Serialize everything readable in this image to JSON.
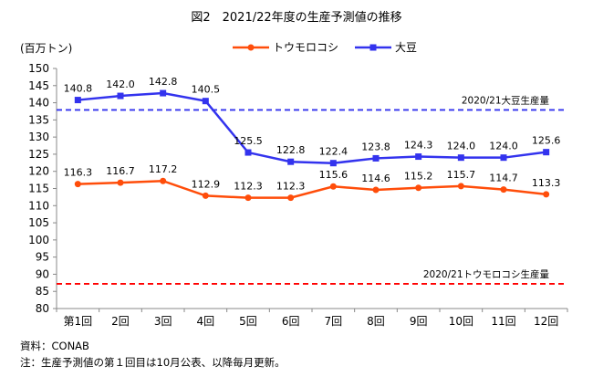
{
  "chart_data": {
    "type": "line",
    "title": "図2　2021/22年度の生産予測値の推移",
    "ylabel": "(百万トン)",
    "xlabel": "",
    "categories": [
      "第1回",
      "2回",
      "3回",
      "4回",
      "5回",
      "6回",
      "7回",
      "8回",
      "9回",
      "10回",
      "11回",
      "12回"
    ],
    "ylim": [
      80,
      150
    ],
    "ytick_step": 5,
    "grid": false,
    "legend_position": "top-center",
    "series": [
      {
        "name": "トウモロコシ",
        "color": "#ff4d0a",
        "values": [
          116.3,
          116.7,
          117.2,
          112.9,
          112.3,
          112.3,
          115.6,
          114.6,
          115.2,
          115.7,
          114.7,
          113.3
        ],
        "labels": [
          "116.3",
          "116.7",
          "117.2",
          "112.9",
          "112.3",
          "112.3",
          "115.6",
          "114.6",
          "115.2",
          "115.7",
          "114.7",
          "113.3"
        ]
      },
      {
        "name": "大豆",
        "color": "#3333ee",
        "values": [
          140.8,
          142.0,
          142.8,
          140.5,
          125.5,
          122.8,
          122.4,
          123.8,
          124.3,
          124.0,
          124.0,
          125.6
        ],
        "labels": [
          "140.8",
          "142.0",
          "142.8",
          "140.5",
          "125.5",
          "122.8",
          "122.4",
          "123.8",
          "124.3",
          "124.0",
          "124.0",
          "125.6"
        ]
      }
    ],
    "reference_lines": [
      {
        "label": "2020/21大豆生産量",
        "value": 137.9,
        "color": "#3333ee"
      },
      {
        "label": "2020/21トウモロコシ生産量",
        "value": 87.2,
        "color": "#ff0000"
      }
    ]
  },
  "source": {
    "line1": "資料：CONAB",
    "line2": "注：生産予測値の第１回目は10月公表、以降毎月更新。"
  }
}
